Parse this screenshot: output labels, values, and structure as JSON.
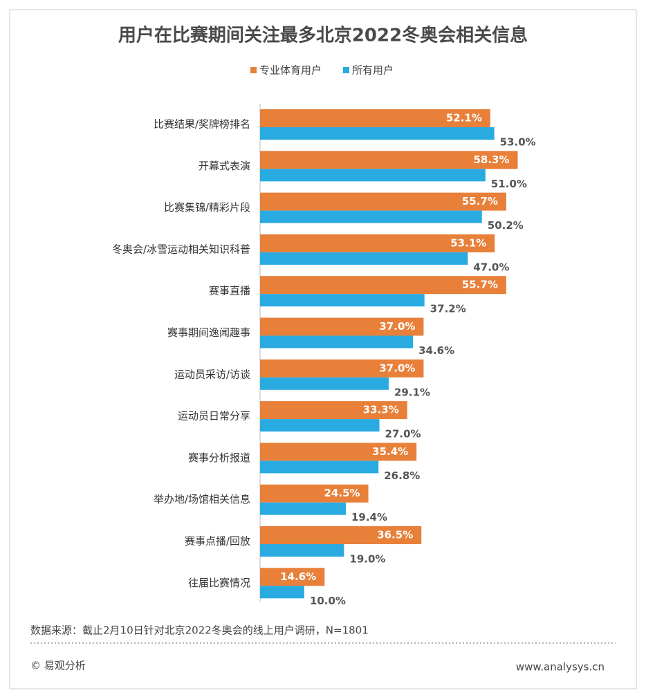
{
  "chart_data": {
    "type": "hbar",
    "title": "用户在比赛期间关注最多北京2022冬奥会相关信息",
    "categories": [
      "比赛结果/奖牌榜排名",
      "开幕式表演",
      "比赛集锦/精彩片段",
      "冬奥会/冰雪运动相关知识科普",
      "赛事直播",
      "赛事期间逸闻趣事",
      "运动员采访/访谈",
      "运动员日常分享",
      "赛事分析报道",
      "举办地/场馆相关信息",
      "赛事点播/回放",
      "往届比赛情况"
    ],
    "series": [
      {
        "name": "专业体育用户",
        "color": "#e8803a",
        "values": [
          52.1,
          58.3,
          55.7,
          53.1,
          55.7,
          37.0,
          37.0,
          33.3,
          35.4,
          24.5,
          36.5,
          14.6
        ],
        "value_labels": [
          "52.1%",
          "58.3%",
          "55.7%",
          "53.1%",
          "55.7%",
          "37.0%",
          "37.0%",
          "33.3%",
          "35.4%",
          "24.5%",
          "36.5%",
          "14.6%"
        ]
      },
      {
        "name": "所有用户",
        "color": "#29abe2",
        "values": [
          53.0,
          51.0,
          50.2,
          47.0,
          37.2,
          34.6,
          29.1,
          27.0,
          26.8,
          19.4,
          19.0,
          10.0
        ],
        "value_labels": [
          "53.0%",
          "51.0%",
          "50.2%",
          "47.0%",
          "37.2%",
          "34.6%",
          "29.1%",
          "27.0%",
          "26.8%",
          "19.4%",
          "19.0%",
          "10.0%"
        ]
      }
    ],
    "legend": "top",
    "note": "数据来源：截止2月10日针对北京2022冬奥会的线上用户调研，N=1801"
  },
  "footer": {
    "copyright": "© 易观分析",
    "website": "www.analysys.cn"
  }
}
